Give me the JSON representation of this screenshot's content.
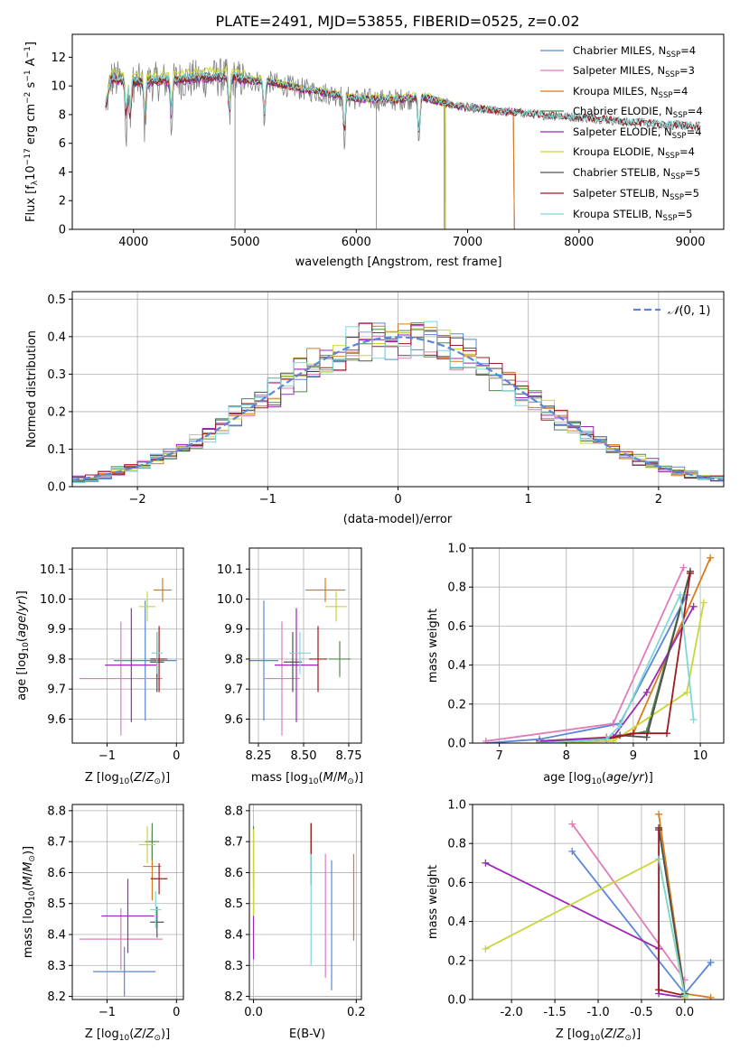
{
  "title": "PLATE=2491, MJD=53855, FIBERID=0525, z=0.02",
  "legend_names": [
    "Chabrier MILES, N_SSP=4",
    "Salpeter MILES, N_SSP=3",
    "Kroupa MILES, N_SSP=4",
    "Chabrier ELODIE, N_SSP=4",
    "Salpeter ELODIE, N_SSP=4",
    "Kroupa ELODIE, N_SSP=4",
    "Chabrier STELIB, N_SSP=5",
    "Salpeter STELIB, N_SSP=5",
    "Kroupa STELIB, N_SSP=5"
  ],
  "colors": [
    "#5b86d8",
    "#e07cba",
    "#d97a1c",
    "#4e8a4e",
    "#9b29b5",
    "#c9d63a",
    "#505050",
    "#a0191e",
    "#7fd8d6"
  ],
  "chart_data": [
    {
      "id": "spectrum",
      "type": "line",
      "xlabel": "wavelength [Angstrom, rest frame]",
      "ylabel": "Flux [f_λ10^-17 erg cm^-2 s^-1 A^-1]",
      "xlim": [
        3450,
        9300
      ],
      "ylim": [
        0,
        13.6
      ],
      "xticks": [
        4000,
        5000,
        6000,
        7000,
        8000,
        9000
      ],
      "yticks": [
        0,
        2,
        4,
        6,
        8,
        10,
        12
      ],
      "data_envelope": {
        "x": [
          3750,
          3800,
          3900,
          4000,
          4200,
          4400,
          4600,
          4800,
          5000,
          5200,
          5500,
          5800,
          6000,
          6300,
          6600,
          6900,
          7200,
          7500,
          7800,
          8000,
          8200,
          8400,
          8600,
          8800,
          9000
        ],
        "y": [
          8.5,
          10.5,
          10.3,
          10.2,
          10.3,
          10.4,
          10.5,
          10.6,
          10.4,
          10.3,
          9.8,
          9.4,
          9.1,
          9.0,
          9.2,
          8.6,
          8.3,
          8.1,
          7.9,
          7.8,
          7.7,
          7.5,
          7.4,
          7.3,
          7.2
        ]
      },
      "data_color": "#808080",
      "absorption_lines": [
        3934,
        3969,
        4101,
        4340,
        4861,
        5175,
        5893,
        6563
      ],
      "model_truncation": {
        "MILES": 7420,
        "ELODIE": 6800,
        "STELIB": 9100
      }
    },
    {
      "id": "residual_hist",
      "type": "line",
      "xlabel": "(data-model)/error",
      "ylabel": "Normed distribution",
      "xlim": [
        -2.5,
        2.5
      ],
      "ylim": [
        0,
        0.52
      ],
      "xticks": [
        -2,
        -1,
        0,
        1,
        2
      ],
      "yticks": [
        0.0,
        0.1,
        0.2,
        0.3,
        0.4,
        0.5
      ],
      "bin_width": 0.1,
      "legend": "N(0,1)",
      "gaussian_color": "#5b86d8"
    },
    {
      "id": "age_Z",
      "type": "scatter",
      "xlabel": "Z [log10(Z/Z⊙)]",
      "ylabel": "age [log10(age/yr)]",
      "xlim": [
        -1.5,
        0.1
      ],
      "ylim": [
        9.52,
        10.17
      ],
      "xticks": [
        -1,
        0
      ],
      "yticks": [
        9.6,
        9.7,
        9.8,
        9.9,
        10.0,
        10.1
      ],
      "points": [
        {
          "x": -0.45,
          "y": 9.795,
          "xerr": 0.45,
          "yerr": 0.2
        },
        {
          "x": -0.8,
          "y": 9.735,
          "xerr": 0.6,
          "yerr": 0.19
        },
        {
          "x": -0.2,
          "y": 10.03,
          "xerr": 0.13,
          "yerr": 0.04
        },
        {
          "x": -0.28,
          "y": 9.8,
          "xerr": 0.1,
          "yerr": 0.06
        },
        {
          "x": -0.65,
          "y": 9.78,
          "xerr": 0.38,
          "yerr": 0.19
        },
        {
          "x": -0.42,
          "y": 9.975,
          "xerr": 0.12,
          "yerr": 0.05
        },
        {
          "x": -0.28,
          "y": 9.79,
          "xerr": 0.1,
          "yerr": 0.1
        },
        {
          "x": -0.25,
          "y": 9.8,
          "xerr": 0.12,
          "yerr": 0.11
        },
        {
          "x": -0.28,
          "y": 9.82,
          "xerr": 0.08,
          "yerr": 0.07
        }
      ]
    },
    {
      "id": "age_mass",
      "type": "scatter",
      "xlabel": "mass [log10(M/M⊙)]",
      "ylabel": "",
      "xlim": [
        8.2,
        8.82
      ],
      "ylim": [
        9.52,
        10.17
      ],
      "xticks": [
        8.25,
        8.5,
        8.75
      ],
      "yticks": [
        9.6,
        9.7,
        9.8,
        9.9,
        10.0,
        10.1
      ],
      "points": [
        {
          "x": 8.28,
          "y": 9.795,
          "xerr": 0.08,
          "yerr": 0.2
        },
        {
          "x": 8.38,
          "y": 9.735,
          "xerr": 0.1,
          "yerr": 0.19
        },
        {
          "x": 8.62,
          "y": 10.03,
          "xerr": 0.11,
          "yerr": 0.04
        },
        {
          "x": 8.7,
          "y": 9.8,
          "xerr": 0.06,
          "yerr": 0.06
        },
        {
          "x": 8.46,
          "y": 9.78,
          "xerr": 0.12,
          "yerr": 0.19
        },
        {
          "x": 8.68,
          "y": 9.975,
          "xerr": 0.06,
          "yerr": 0.05
        },
        {
          "x": 8.44,
          "y": 9.79,
          "xerr": 0.05,
          "yerr": 0.1
        },
        {
          "x": 8.58,
          "y": 9.8,
          "xerr": 0.05,
          "yerr": 0.11
        },
        {
          "x": 8.48,
          "y": 9.82,
          "xerr": 0.06,
          "yerr": 0.07
        }
      ]
    },
    {
      "id": "weight_age",
      "type": "line",
      "xlabel": "age [log10(age/yr)]",
      "ylabel": "mass weight",
      "xlim": [
        6.6,
        10.35
      ],
      "ylim": [
        0,
        1.0
      ],
      "xticks": [
        7,
        8,
        9,
        10
      ],
      "yticks": [
        0.0,
        0.2,
        0.4,
        0.6,
        0.8,
        1.0
      ],
      "series": [
        {
          "x": [
            6.8,
            7.6,
            8.8,
            9.8
          ],
          "y": [
            0.0,
            0.02,
            0.1,
            0.76
          ]
        },
        {
          "x": [
            6.8,
            8.7,
            9.75
          ],
          "y": [
            0.01,
            0.1,
            0.9
          ]
        },
        {
          "x": [
            7.6,
            8.6,
            9.0,
            10.15
          ],
          "y": [
            0.01,
            0.03,
            0.05,
            0.95
          ]
        },
        {
          "x": [
            7.6,
            8.6,
            9.2,
            9.85
          ],
          "y": [
            0.01,
            0.02,
            0.06,
            0.88
          ]
        },
        {
          "x": [
            7.6,
            8.7,
            9.2,
            9.9
          ],
          "y": [
            0.01,
            0.03,
            0.26,
            0.7
          ]
        },
        {
          "x": [
            7.6,
            8.7,
            9.8,
            10.05
          ],
          "y": [
            0.0,
            0.01,
            0.26,
            0.72
          ]
        },
        {
          "x": [
            7.6,
            8.6,
            8.8,
            9.2,
            9.85
          ],
          "y": [
            0.0,
            0.02,
            0.04,
            0.03,
            0.88
          ]
        },
        {
          "x": [
            7.6,
            8.6,
            9.0,
            9.5,
            9.85
          ],
          "y": [
            0.0,
            0.02,
            0.05,
            0.05,
            0.87
          ]
        },
        {
          "x": [
            7.6,
            8.6,
            8.8,
            9.7,
            9.9
          ],
          "y": [
            0.0,
            0.02,
            0.09,
            0.76,
            0.12
          ]
        }
      ]
    },
    {
      "id": "mass_Z",
      "type": "scatter",
      "xlabel": "Z [log10(Z/Z⊙)]",
      "ylabel": "mass [log10(M/M⊙)]",
      "xlim": [
        -1.5,
        0.1
      ],
      "ylim": [
        8.19,
        8.82
      ],
      "xticks": [
        -1,
        0
      ],
      "yticks": [
        8.2,
        8.3,
        8.4,
        8.5,
        8.6,
        8.7,
        8.8
      ],
      "points": [
        {
          "x": -0.75,
          "y": 8.28,
          "xerr": 0.45,
          "yerr": 0.08
        },
        {
          "x": -0.8,
          "y": 8.385,
          "xerr": 0.6,
          "yerr": 0.1
        },
        {
          "x": -0.35,
          "y": 8.62,
          "xerr": 0.13,
          "yerr": 0.11
        },
        {
          "x": -0.35,
          "y": 8.7,
          "xerr": 0.1,
          "yerr": 0.06
        },
        {
          "x": -0.7,
          "y": 8.46,
          "xerr": 0.38,
          "yerr": 0.12
        },
        {
          "x": -0.42,
          "y": 8.69,
          "xerr": 0.12,
          "yerr": 0.06
        },
        {
          "x": -0.28,
          "y": 8.44,
          "xerr": 0.1,
          "yerr": 0.05
        },
        {
          "x": -0.25,
          "y": 8.58,
          "xerr": 0.12,
          "yerr": 0.05
        },
        {
          "x": -0.3,
          "y": 8.48,
          "xerr": 0.08,
          "yerr": 0.06
        }
      ]
    },
    {
      "id": "mass_ebv",
      "type": "scatter",
      "xlabel": "E(B-V)",
      "ylabel": "",
      "xlim": [
        -0.008,
        0.21
      ],
      "ylim": [
        8.19,
        8.82
      ],
      "xticks": [
        0.0,
        0.2
      ],
      "yticks": [
        8.2,
        8.3,
        8.4,
        8.5,
        8.6,
        8.7,
        8.8
      ],
      "points": [
        {
          "x": 0.152,
          "y": 8.43,
          "xerr": 0,
          "yerr": 0.21
        },
        {
          "x": 0.14,
          "y": 8.46,
          "xerr": 0,
          "yerr": 0.2
        },
        {
          "x": 0.195,
          "y": 8.52,
          "xerr": 0,
          "yerr": 0.14
        },
        {
          "x": 0.0,
          "y": 8.65,
          "xerr": 0,
          "yerr": 0.1
        },
        {
          "x": 0.0,
          "y": 8.46,
          "xerr": 0,
          "yerr": 0.14
        },
        {
          "x": 0.0,
          "y": 8.6,
          "xerr": 0,
          "yerr": 0.14
        },
        {
          "x": 0.112,
          "y": 8.66,
          "xerr": 0,
          "yerr": 0.1
        },
        {
          "x": 0.112,
          "y": 8.71,
          "xerr": 0,
          "yerr": 0.05
        },
        {
          "x": 0.112,
          "y": 8.48,
          "xerr": 0,
          "yerr": 0.18
        }
      ]
    },
    {
      "id": "weight_Z",
      "type": "line",
      "xlabel": "Z [log10(Z/Z⊙)]",
      "ylabel": "mass weight",
      "xlim": [
        -2.45,
        0.45
      ],
      "ylim": [
        0,
        1.0
      ],
      "xticks": [
        -2.0,
        -1.5,
        -1.0,
        -0.5,
        0.0
      ],
      "yticks": [
        0.0,
        0.2,
        0.4,
        0.6,
        0.8,
        1.0
      ],
      "series": [
        {
          "x": [
            -1.3,
            0.0,
            0.3
          ],
          "y": [
            0.76,
            0.03,
            0.19
          ]
        },
        {
          "x": [
            -1.3,
            0.0
          ],
          "y": [
            0.9,
            0.1
          ]
        },
        {
          "x": [
            -0.3,
            0.0,
            0.3
          ],
          "y": [
            0.95,
            0.03,
            0.01
          ]
        },
        {
          "x": [
            -0.3,
            0.0
          ],
          "y": [
            0.88,
            0.02
          ]
        },
        {
          "x": [
            -2.3,
            -0.3,
            -0.3,
            0.0
          ],
          "y": [
            0.7,
            0.26,
            0.03,
            0.01
          ]
        },
        {
          "x": [
            -2.3,
            -0.3,
            0.0
          ],
          "y": [
            0.26,
            0.72,
            0.01
          ]
        },
        {
          "x": [
            -0.3,
            0.0
          ],
          "y": [
            0.88,
            0.03
          ]
        },
        {
          "x": [
            -0.3,
            -0.3,
            0.0
          ],
          "y": [
            0.87,
            0.05,
            0.02
          ]
        },
        {
          "x": [
            -0.3,
            0.0
          ],
          "y": [
            0.72,
            0.02
          ]
        }
      ]
    }
  ]
}
